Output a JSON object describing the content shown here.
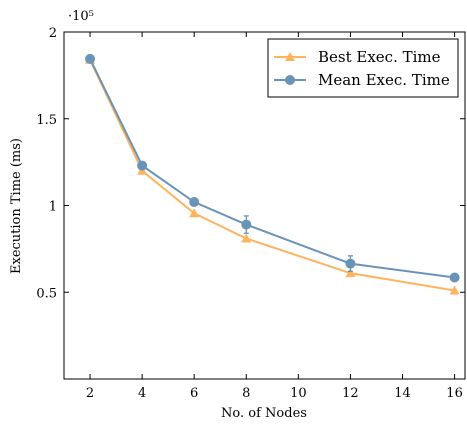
{
  "chart_data": {
    "type": "line",
    "title": "",
    "xlabel": "No. of Nodes",
    "ylabel": "Execution Time (ms)",
    "y_multiplier_label": "·10⁵",
    "xlim": [
      1,
      16.4
    ],
    "ylim": [
      0,
      2
    ],
    "x_ticks": [
      2,
      4,
      6,
      8,
      10,
      12,
      14,
      16
    ],
    "x_tick_labels": [
      "2",
      "4",
      "6",
      "8",
      "10",
      "12",
      "14",
      "16"
    ],
    "y_ticks": [
      0.5,
      1,
      1.5,
      2
    ],
    "y_tick_labels": [
      "0.5",
      "1",
      "1.5",
      "2"
    ],
    "grid": false,
    "legend_position": "top-right",
    "series": [
      {
        "name": "Best Exec. Time",
        "color": "#ffb35c",
        "marker": "triangle",
        "x": [
          2,
          4,
          6,
          8,
          12,
          16
        ],
        "y": [
          1.84,
          1.2,
          0.955,
          0.81,
          0.61,
          0.51
        ]
      },
      {
        "name": "Mean Exec. Time",
        "color": "#6a93b8",
        "marker": "circle",
        "x": [
          2,
          4,
          6,
          8,
          12,
          16
        ],
        "y": [
          1.845,
          1.23,
          1.02,
          0.89,
          0.665,
          0.585
        ],
        "error": [
          0,
          0,
          0,
          0.05,
          0.045,
          0
        ]
      }
    ]
  }
}
